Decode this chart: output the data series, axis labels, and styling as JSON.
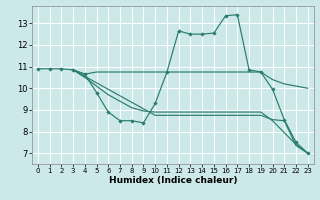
{
  "xlabel": "Humidex (Indice chaleur)",
  "bg_color": "#cce8e8",
  "grid_color": "#ffffff",
  "line_color": "#2a7d6e",
  "xlim": [
    -0.5,
    23.5
  ],
  "ylim": [
    6.5,
    13.8
  ],
  "xticks": [
    0,
    1,
    2,
    3,
    4,
    5,
    6,
    7,
    8,
    9,
    10,
    11,
    12,
    13,
    14,
    15,
    16,
    17,
    18,
    19,
    20,
    21,
    22,
    23
  ],
  "yticks": [
    7,
    8,
    9,
    10,
    11,
    12,
    13
  ],
  "line1_x": [
    0,
    1,
    2,
    3,
    4,
    5,
    6,
    7,
    8,
    9,
    10,
    11,
    12,
    13,
    14,
    15,
    16,
    17,
    18,
    19,
    20,
    21,
    22,
    23
  ],
  "line1_y": [
    10.9,
    10.9,
    10.9,
    10.85,
    10.65,
    9.8,
    8.9,
    8.5,
    8.5,
    8.4,
    9.3,
    10.75,
    12.65,
    12.5,
    12.5,
    12.55,
    13.35,
    13.4,
    10.85,
    10.75,
    9.95,
    8.55,
    7.5,
    7.0
  ],
  "line2_x": [
    3,
    4,
    5,
    6,
    7,
    8,
    9,
    10,
    11,
    12,
    13,
    14,
    15,
    16,
    17,
    18,
    19,
    20,
    21,
    22,
    23
  ],
  "line2_y": [
    10.85,
    10.65,
    10.75,
    10.75,
    10.75,
    10.75,
    10.75,
    10.75,
    10.75,
    10.75,
    10.75,
    10.75,
    10.75,
    10.75,
    10.75,
    10.75,
    10.75,
    10.4,
    10.2,
    10.1,
    10.0
  ],
  "line3_x": [
    3,
    4,
    5,
    6,
    7,
    8,
    9,
    10,
    11,
    12,
    13,
    14,
    15,
    16,
    17,
    18,
    19,
    20,
    21,
    22,
    23
  ],
  "line3_y": [
    10.85,
    10.5,
    10.1,
    9.7,
    9.4,
    9.1,
    8.95,
    8.9,
    8.9,
    8.9,
    8.9,
    8.9,
    8.9,
    8.9,
    8.9,
    8.9,
    8.9,
    8.5,
    7.95,
    7.4,
    7.0
  ],
  "line4_x": [
    3,
    4,
    5,
    6,
    7,
    8,
    9,
    10,
    11,
    12,
    13,
    14,
    15,
    16,
    17,
    18,
    19,
    20,
    21,
    22,
    23
  ],
  "line4_y": [
    10.85,
    10.55,
    10.25,
    9.95,
    9.65,
    9.35,
    9.05,
    8.75,
    8.75,
    8.75,
    8.75,
    8.75,
    8.75,
    8.75,
    8.75,
    8.75,
    8.75,
    8.55,
    8.5,
    7.35,
    7.0
  ]
}
